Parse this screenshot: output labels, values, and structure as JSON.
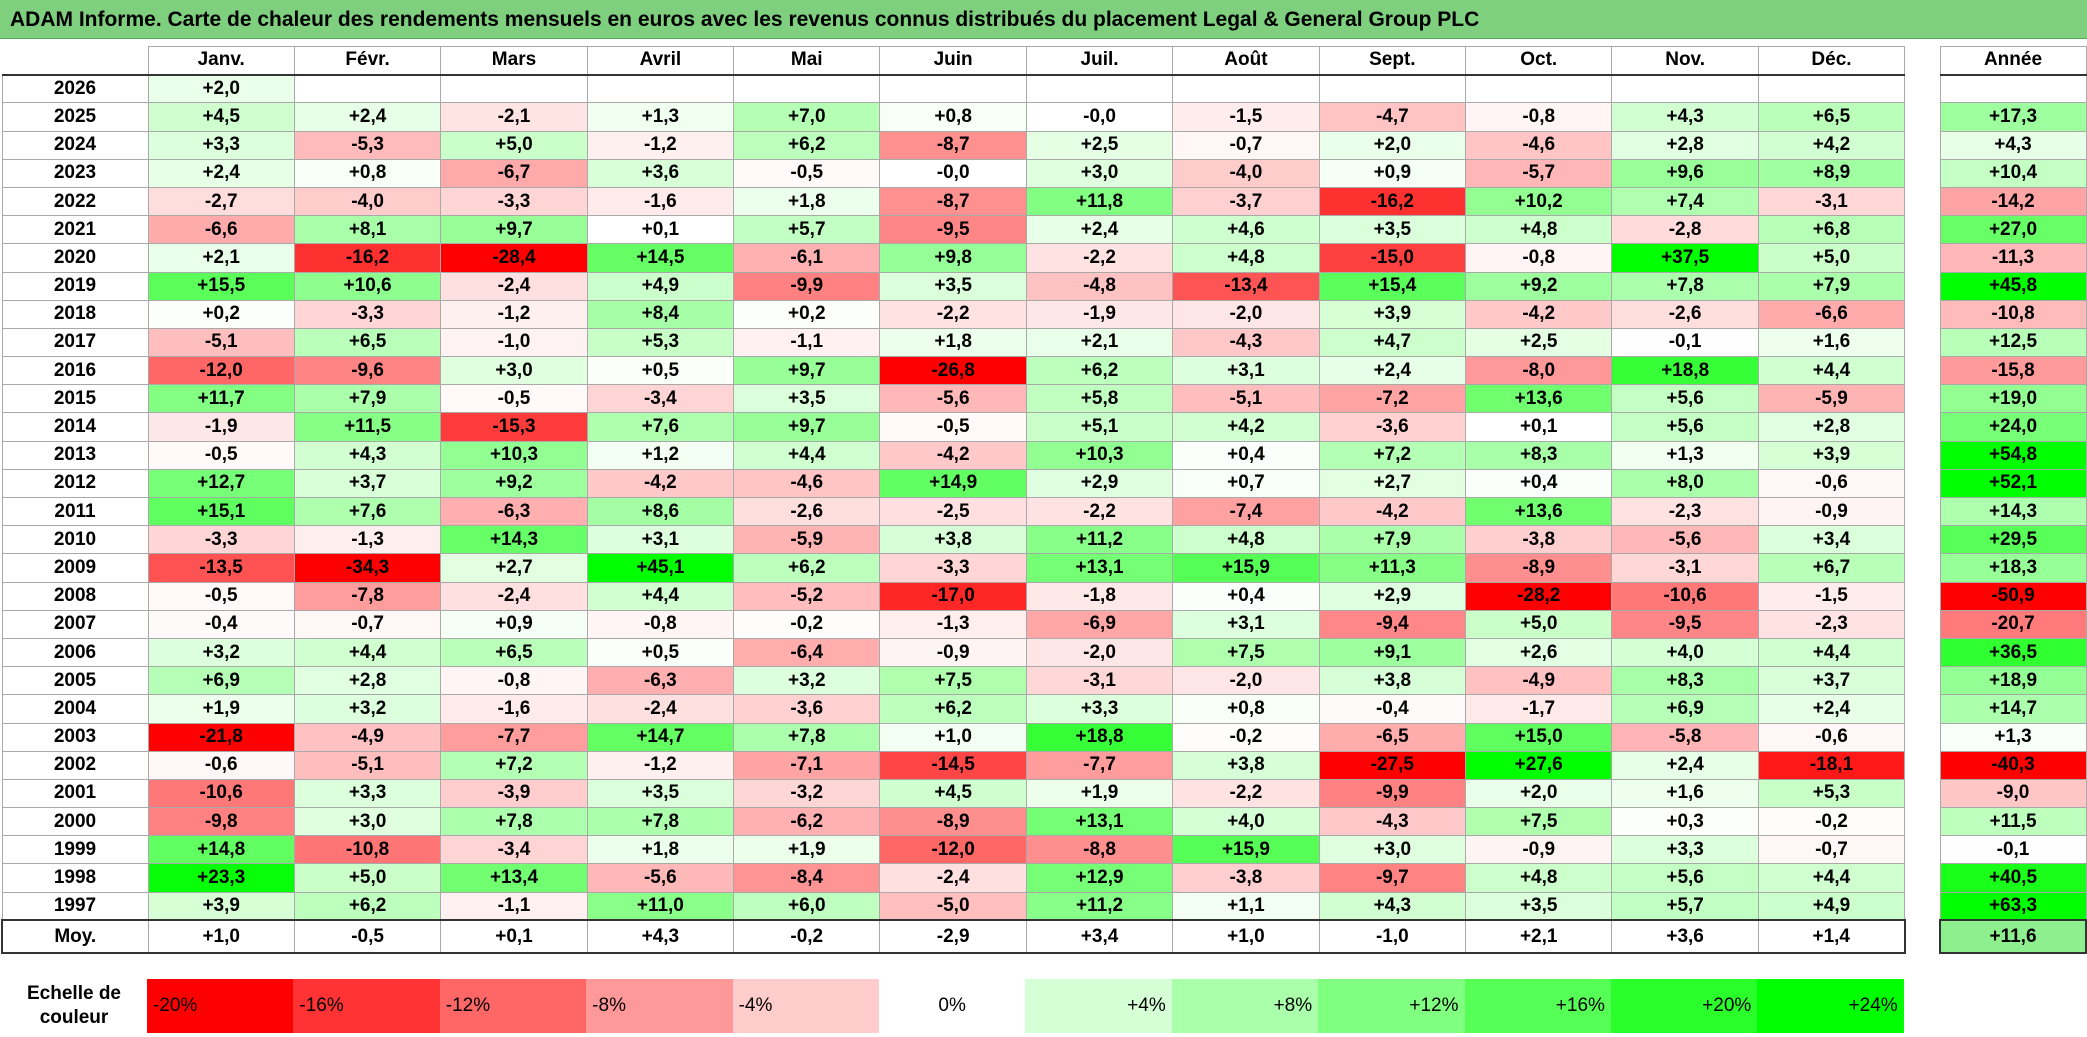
{
  "title": "ADAM Informe. Carte de chaleur des rendements mensuels en euros avec les revenus connus distribués du placement Legal & General Group PLC",
  "chart_data": {
    "type": "heatmap",
    "title": "ADAM Informe. Carte de chaleur des rendements mensuels en euros avec les revenus connus distribués du placement Legal & General Group PLC",
    "months": [
      "Janv.",
      "Févr.",
      "Mars",
      "Avril",
      "Mai",
      "Juin",
      "Juil.",
      "Août",
      "Sept.",
      "Oct.",
      "Nov.",
      "Déc."
    ],
    "annual_header": "Année",
    "rows": [
      {
        "year": "2026",
        "values": [
          "+2,0",
          "",
          "",
          "",
          "",
          "",
          "",
          "",
          "",
          "",
          "",
          ""
        ],
        "annual": ""
      },
      {
        "year": "2025",
        "values": [
          "+4,5",
          "+2,4",
          "-2,1",
          "+1,3",
          "+7,0",
          "+0,8",
          "-0,0",
          "-1,5",
          "-4,7",
          "-0,8",
          "+4,3",
          "+6,5"
        ],
        "annual": "+17,3"
      },
      {
        "year": "2024",
        "values": [
          "+3,3",
          "-5,3",
          "+5,0",
          "-1,2",
          "+6,2",
          "-8,7",
          "+2,5",
          "-0,7",
          "+2,0",
          "-4,6",
          "+2,8",
          "+4,2"
        ],
        "annual": "+4,3"
      },
      {
        "year": "2023",
        "values": [
          "+2,4",
          "+0,8",
          "-6,7",
          "+3,6",
          "-0,5",
          "-0,0",
          "+3,0",
          "-4,0",
          "+0,9",
          "-5,7",
          "+9,6",
          "+8,9"
        ],
        "annual": "+10,4"
      },
      {
        "year": "2022",
        "values": [
          "-2,7",
          "-4,0",
          "-3,3",
          "-1,6",
          "+1,8",
          "-8,7",
          "+11,8",
          "-3,7",
          "-16,2",
          "+10,2",
          "+7,4",
          "-3,1"
        ],
        "annual": "-14,2"
      },
      {
        "year": "2021",
        "values": [
          "-6,6",
          "+8,1",
          "+9,7",
          "+0,1",
          "+5,7",
          "-9,5",
          "+2,4",
          "+4,6",
          "+3,5",
          "+4,8",
          "-2,8",
          "+6,8"
        ],
        "annual": "+27,0"
      },
      {
        "year": "2020",
        "values": [
          "+2,1",
          "-16,2",
          "-28,4",
          "+14,5",
          "-6,1",
          "+9,8",
          "-2,2",
          "+4,8",
          "-15,0",
          "-0,8",
          "+37,5",
          "+5,0"
        ],
        "annual": "-11,3"
      },
      {
        "year": "2019",
        "values": [
          "+15,5",
          "+10,6",
          "-2,4",
          "+4,9",
          "-9,9",
          "+3,5",
          "-4,8",
          "-13,4",
          "+15,4",
          "+9,2",
          "+7,8",
          "+7,9"
        ],
        "annual": "+45,8"
      },
      {
        "year": "2018",
        "values": [
          "+0,2",
          "-3,3",
          "-1,2",
          "+8,4",
          "+0,2",
          "-2,2",
          "-1,9",
          "-2,0",
          "+3,9",
          "-4,2",
          "-2,6",
          "-6,6"
        ],
        "annual": "-10,8"
      },
      {
        "year": "2017",
        "values": [
          "-5,1",
          "+6,5",
          "-1,0",
          "+5,3",
          "-1,1",
          "+1,8",
          "+2,1",
          "-4,3",
          "+4,7",
          "+2,5",
          "-0,1",
          "+1,6"
        ],
        "annual": "+12,5"
      },
      {
        "year": "2016",
        "values": [
          "-12,0",
          "-9,6",
          "+3,0",
          "+0,5",
          "+9,7",
          "-26,8",
          "+6,2",
          "+3,1",
          "+2,4",
          "-8,0",
          "+18,8",
          "+4,4"
        ],
        "annual": "-15,8"
      },
      {
        "year": "2015",
        "values": [
          "+11,7",
          "+7,9",
          "-0,5",
          "-3,4",
          "+3,5",
          "-5,6",
          "+5,8",
          "-5,1",
          "-7,2",
          "+13,6",
          "+5,6",
          "-5,9"
        ],
        "annual": "+19,0"
      },
      {
        "year": "2014",
        "values": [
          "-1,9",
          "+11,5",
          "-15,3",
          "+7,6",
          "+9,7",
          "-0,5",
          "+5,1",
          "+4,2",
          "-3,6",
          "+0,1",
          "+5,6",
          "+2,8"
        ],
        "annual": "+24,0"
      },
      {
        "year": "2013",
        "values": [
          "-0,5",
          "+4,3",
          "+10,3",
          "+1,2",
          "+4,4",
          "-4,2",
          "+10,3",
          "+0,4",
          "+7,2",
          "+8,3",
          "+1,3",
          "+3,9"
        ],
        "annual": "+54,8"
      },
      {
        "year": "2012",
        "values": [
          "+12,7",
          "+3,7",
          "+9,2",
          "-4,2",
          "-4,6",
          "+14,9",
          "+2,9",
          "+0,7",
          "+2,7",
          "+0,4",
          "+8,0",
          "-0,6"
        ],
        "annual": "+52,1"
      },
      {
        "year": "2011",
        "values": [
          "+15,1",
          "+7,6",
          "-6,3",
          "+8,6",
          "-2,6",
          "-2,5",
          "-2,2",
          "-7,4",
          "-4,2",
          "+13,6",
          "-2,3",
          "-0,9"
        ],
        "annual": "+14,3"
      },
      {
        "year": "2010",
        "values": [
          "-3,3",
          "-1,3",
          "+14,3",
          "+3,1",
          "-5,9",
          "+3,8",
          "+11,2",
          "+4,8",
          "+7,9",
          "-3,8",
          "-5,6",
          "+3,4"
        ],
        "annual": "+29,5"
      },
      {
        "year": "2009",
        "values": [
          "-13,5",
          "-34,3",
          "+2,7",
          "+45,1",
          "+6,2",
          "-3,3",
          "+13,1",
          "+15,9",
          "+11,3",
          "-8,9",
          "-3,1",
          "+6,7"
        ],
        "annual": "+18,3"
      },
      {
        "year": "2008",
        "values": [
          "-0,5",
          "-7,8",
          "-2,4",
          "+4,4",
          "-5,2",
          "-17,0",
          "-1,8",
          "+0,4",
          "+2,9",
          "-28,2",
          "-10,6",
          "-1,5"
        ],
        "annual": "-50,9"
      },
      {
        "year": "2007",
        "values": [
          "-0,4",
          "-0,7",
          "+0,9",
          "-0,8",
          "-0,2",
          "-1,3",
          "-6,9",
          "+3,1",
          "-9,4",
          "+5,0",
          "-9,5",
          "-2,3"
        ],
        "annual": "-20,7"
      },
      {
        "year": "2006",
        "values": [
          "+3,2",
          "+4,4",
          "+6,5",
          "+0,5",
          "-6,4",
          "-0,9",
          "-2,0",
          "+7,5",
          "+9,1",
          "+2,6",
          "+4,0",
          "+4,4"
        ],
        "annual": "+36,5"
      },
      {
        "year": "2005",
        "values": [
          "+6,9",
          "+2,8",
          "-0,8",
          "-6,3",
          "+3,2",
          "+7,5",
          "-3,1",
          "-2,0",
          "+3,8",
          "-4,9",
          "+8,3",
          "+3,7"
        ],
        "annual": "+18,9"
      },
      {
        "year": "2004",
        "values": [
          "+1,9",
          "+3,2",
          "-1,6",
          "-2,4",
          "-3,6",
          "+6,2",
          "+3,3",
          "+0,8",
          "-0,4",
          "-1,7",
          "+6,9",
          "+2,4"
        ],
        "annual": "+14,7"
      },
      {
        "year": "2003",
        "values": [
          "-21,8",
          "-4,9",
          "-7,7",
          "+14,7",
          "+7,8",
          "+1,0",
          "+18,8",
          "-0,2",
          "-6,5",
          "+15,0",
          "-5,8",
          "-0,6"
        ],
        "annual": "+1,3"
      },
      {
        "year": "2002",
        "values": [
          "-0,6",
          "-5,1",
          "+7,2",
          "-1,2",
          "-7,1",
          "-14,5",
          "-7,7",
          "+3,8",
          "-27,5",
          "+27,6",
          "+2,4",
          "-18,1"
        ],
        "annual": "-40,3"
      },
      {
        "year": "2001",
        "values": [
          "-10,6",
          "+3,3",
          "-3,9",
          "+3,5",
          "-3,2",
          "+4,5",
          "+1,9",
          "-2,2",
          "-9,9",
          "+2,0",
          "+1,6",
          "+5,3"
        ],
        "annual": "-9,0"
      },
      {
        "year": "2000",
        "values": [
          "-9,8",
          "+3,0",
          "+7,8",
          "+7,8",
          "-6,2",
          "-8,9",
          "+13,1",
          "+4,0",
          "-4,3",
          "+7,5",
          "+0,3",
          "-0,2"
        ],
        "annual": "+11,5"
      },
      {
        "year": "1999",
        "values": [
          "+14,8",
          "-10,8",
          "-3,4",
          "+1,8",
          "+1,9",
          "-12,0",
          "-8,8",
          "+15,9",
          "+3,0",
          "-0,9",
          "+3,3",
          "-0,7"
        ],
        "annual": "-0,1"
      },
      {
        "year": "1998",
        "values": [
          "+23,3",
          "+5,0",
          "+13,4",
          "-5,6",
          "-8,4",
          "-2,4",
          "+12,9",
          "-3,8",
          "-9,7",
          "+4,8",
          "+5,6",
          "+4,4"
        ],
        "annual": "+40,5"
      },
      {
        "year": "1997",
        "values": [
          "+3,9",
          "+6,2",
          "-1,1",
          "+11,0",
          "+6,0",
          "-5,0",
          "+11,2",
          "+1,1",
          "+4,3",
          "+3,5",
          "+5,7",
          "+4,9"
        ],
        "annual": "+63,3"
      }
    ],
    "average": {
      "label": "Moy.",
      "values": [
        "+1,0",
        "-0,5",
        "+0,1",
        "+4,3",
        "-0,2",
        "-2,9",
        "+3,4",
        "+1,0",
        "-1,0",
        "+2,1",
        "+3,6",
        "+1,4"
      ],
      "annual": "+11,6"
    },
    "scale": {
      "label_line1": "Echelle de",
      "label_line2": "couleur",
      "stops": [
        "-20%",
        "-16%",
        "-12%",
        "-8%",
        "-4%",
        "0%",
        "+4%",
        "+8%",
        "+12%",
        "+16%",
        "+20%",
        "+24%"
      ],
      "stop_values": [
        -20,
        -16,
        -12,
        -8,
        -4,
        0,
        4,
        8,
        12,
        16,
        20,
        24
      ]
    },
    "colors": {
      "negative": "#ff0000",
      "neutral": "#ffffff",
      "positive": "#00ff00"
    }
  }
}
